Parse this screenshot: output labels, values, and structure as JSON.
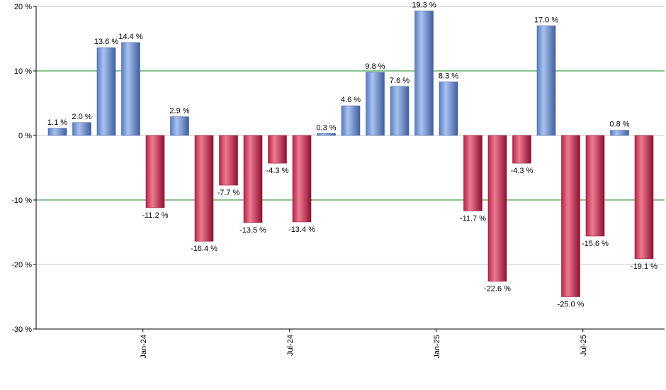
{
  "chart_data": {
    "type": "bar",
    "title": "",
    "xlabel": "",
    "ylabel": "",
    "ylim": [
      -30,
      20
    ],
    "y_ticks": [
      20,
      10,
      0,
      -10,
      -20,
      -30
    ],
    "y_tick_labels": [
      "20 %",
      "10 %",
      "0 %",
      "-10 %",
      "-20 %",
      "-30 %"
    ],
    "x_tick_labels": [
      {
        "label": "Jan-24",
        "at_index": 4
      },
      {
        "label": "Jul-24",
        "at_index": 10
      },
      {
        "label": "Jan-25",
        "at_index": 16
      },
      {
        "label": "Jul-25",
        "at_index": 22
      }
    ],
    "values": [
      1.1,
      2.0,
      13.6,
      14.4,
      -11.2,
      2.9,
      -16.4,
      -7.7,
      -13.5,
      -4.3,
      -13.4,
      0.3,
      4.6,
      9.8,
      7.6,
      19.3,
      8.3,
      -11.7,
      -22.6,
      -4.3,
      17.0,
      -25.0,
      -15.6,
      0.8,
      -19.1
    ],
    "value_labels": [
      "1.1 %",
      "2.0 %",
      "13.6 %",
      "14.4 %",
      "-11.2 %",
      "2.9 %",
      "-16.4 %",
      "-7.7 %",
      "-13.5 %",
      "-4.3 %",
      "-13.4 %",
      "0.3 %",
      "4.6 %",
      "9.8 %",
      "7.6 %",
      "19.3 %",
      "8.3 %",
      "-11.7 %",
      "-22.6 %",
      "-4.3 %",
      "17.0 %",
      "-25.0 %",
      "-15.6 %",
      "0.8 %",
      "-19.1 %"
    ],
    "grid": true,
    "colors": {
      "positive": "#7d9ee0",
      "positive_dark": "#4566a8",
      "negative": "#d84a68",
      "negative_dark": "#a01838",
      "highlight_grid": "#1a8a1a",
      "grid": "#c8c8c8",
      "axis": "#000000"
    }
  }
}
